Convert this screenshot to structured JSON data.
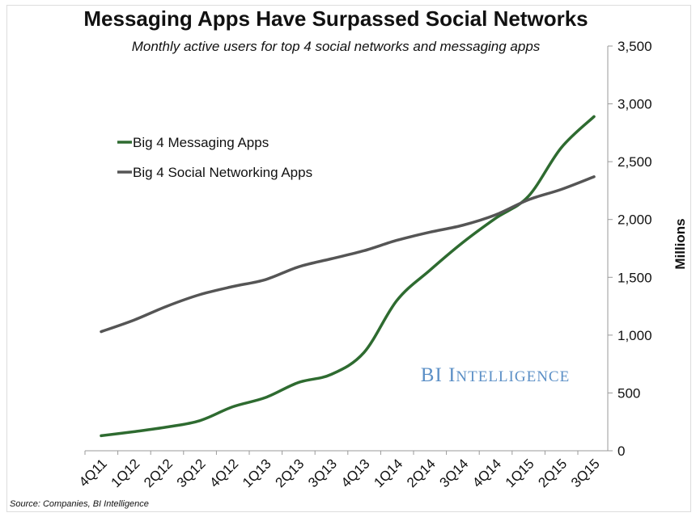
{
  "chart_data": {
    "type": "line",
    "title": "Messaging Apps Have Surpassed Social Networks",
    "subtitle": "Monthly active users for top 4 social networks and messaging apps",
    "ylabel": "Millions",
    "xlabel": "",
    "ylim": [
      0,
      3500
    ],
    "yticks": [
      "0",
      "500",
      "1,000",
      "1,500",
      "2,000",
      "2,500",
      "3,000",
      "3,500"
    ],
    "ytick_values": [
      0,
      500,
      1000,
      1500,
      2000,
      2500,
      3000,
      3500
    ],
    "categories": [
      "4Q11",
      "1Q12",
      "2Q12",
      "3Q12",
      "4Q12",
      "1Q13",
      "2Q13",
      "3Q13",
      "4Q13",
      "1Q14",
      "2Q14",
      "3Q14",
      "4Q14",
      "1Q15",
      "2Q15",
      "3Q15"
    ],
    "series": [
      {
        "name": "Big 4 Messaging Apps",
        "color": "#2e6b30",
        "values": [
          130,
          165,
          205,
          260,
          380,
          460,
          590,
          660,
          850,
          1300,
          1560,
          1800,
          2010,
          2200,
          2620,
          2890
        ]
      },
      {
        "name": "Big 4 Social Networking Apps",
        "color": "#555555",
        "values": [
          1030,
          1130,
          1250,
          1350,
          1420,
          1480,
          1590,
          1660,
          1730,
          1820,
          1890,
          1950,
          2040,
          2170,
          2260,
          2370
        ]
      }
    ],
    "legend_position": "top-left",
    "grid": false,
    "axis_side": "right"
  },
  "watermark": "BI Intelligence",
  "source": "Source: Companies, BI Intelligence"
}
